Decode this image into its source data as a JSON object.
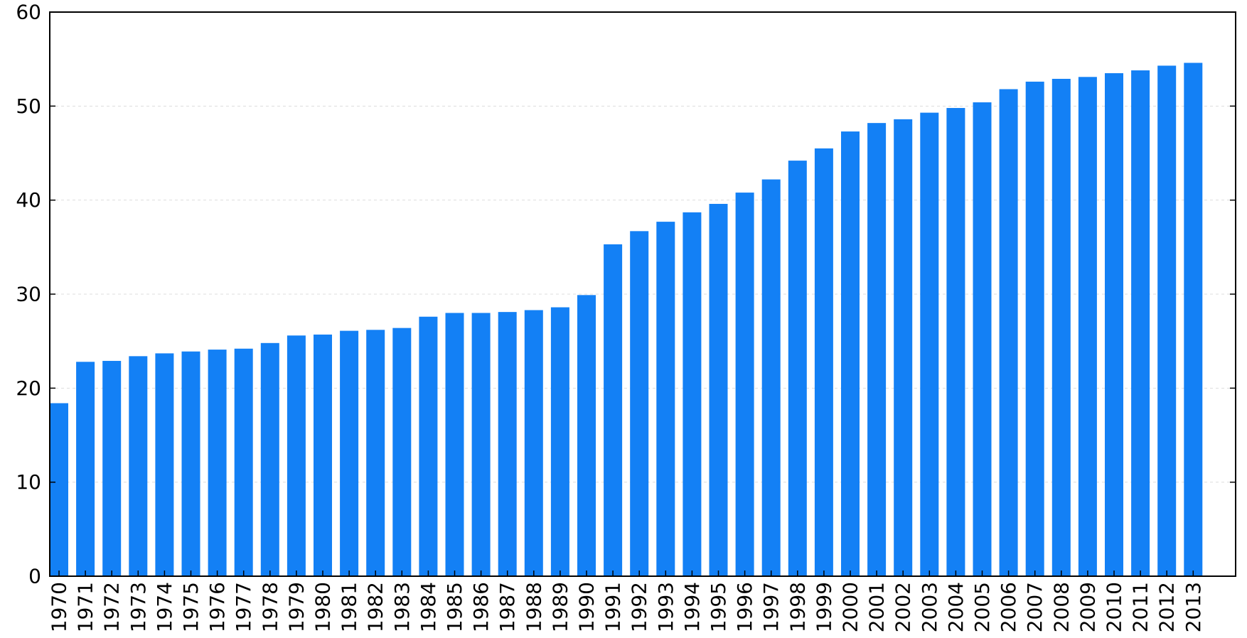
{
  "chart_data": {
    "type": "bar",
    "title": "",
    "xlabel": "",
    "ylabel": "",
    "ylim": [
      0,
      60
    ],
    "yticks": [
      0,
      10,
      20,
      30,
      40,
      50,
      60
    ],
    "grid": true,
    "bar_color": "#1380f5",
    "categories": [
      "1970",
      "1971",
      "1972",
      "1973",
      "1974",
      "1975",
      "1976",
      "1977",
      "1978",
      "1979",
      "1980",
      "1981",
      "1982",
      "1983",
      "1984",
      "1985",
      "1986",
      "1987",
      "1988",
      "1989",
      "1990",
      "1991",
      "1992",
      "1993",
      "1994",
      "1995",
      "1996",
      "1997",
      "1998",
      "1999",
      "2000",
      "2001",
      "2002",
      "2003",
      "2004",
      "2005",
      "2006",
      "2007",
      "2008",
      "2009",
      "2010",
      "2011",
      "2012",
      "2013"
    ],
    "values": [
      18.4,
      22.8,
      22.9,
      23.4,
      23.7,
      23.9,
      24.1,
      24.2,
      24.8,
      25.6,
      25.7,
      26.1,
      26.2,
      26.4,
      27.6,
      28.0,
      28.0,
      28.1,
      28.3,
      28.6,
      29.9,
      35.3,
      36.7,
      37.7,
      38.7,
      39.6,
      40.8,
      42.2,
      44.2,
      45.5,
      47.3,
      48.2,
      48.6,
      49.3,
      49.8,
      50.4,
      51.8,
      52.6,
      52.9,
      53.1,
      53.5,
      53.8,
      54.3,
      54.6
    ]
  }
}
